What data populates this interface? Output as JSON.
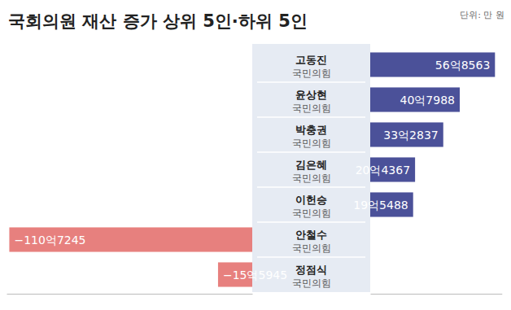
{
  "chart_data": {
    "type": "bar",
    "title": "국회의원 재산 증가 상위 5인·하위 5인",
    "subtitle": "단위: 만 원",
    "orientation": "horizontal",
    "categories": [
      "고동진",
      "윤상현",
      "박충권",
      "김은혜",
      "이헌승",
      "안철수",
      "정점식"
    ],
    "parties": [
      "국민의힘",
      "국민의힘",
      "국민의힘",
      "국민의힘",
      "국민의힘",
      "국민의힘",
      "국민의힘"
    ],
    "values": [
      568563,
      407988,
      332837,
      204367,
      195488,
      -1107245,
      -155945
    ],
    "value_labels": [
      "56억8563",
      "40억7988",
      "33억2837",
      "20억4367",
      "19억5488",
      "−110억7245",
      "−15억5945"
    ],
    "colors": [
      "#4b5199",
      "#4b5199",
      "#4b5199",
      "#4b5199",
      "#4b5199",
      "#e7807e",
      "#e7807e"
    ],
    "data_labels": true,
    "tick_labels": false,
    "xlim": [
      -1120000,
      600000
    ]
  }
}
